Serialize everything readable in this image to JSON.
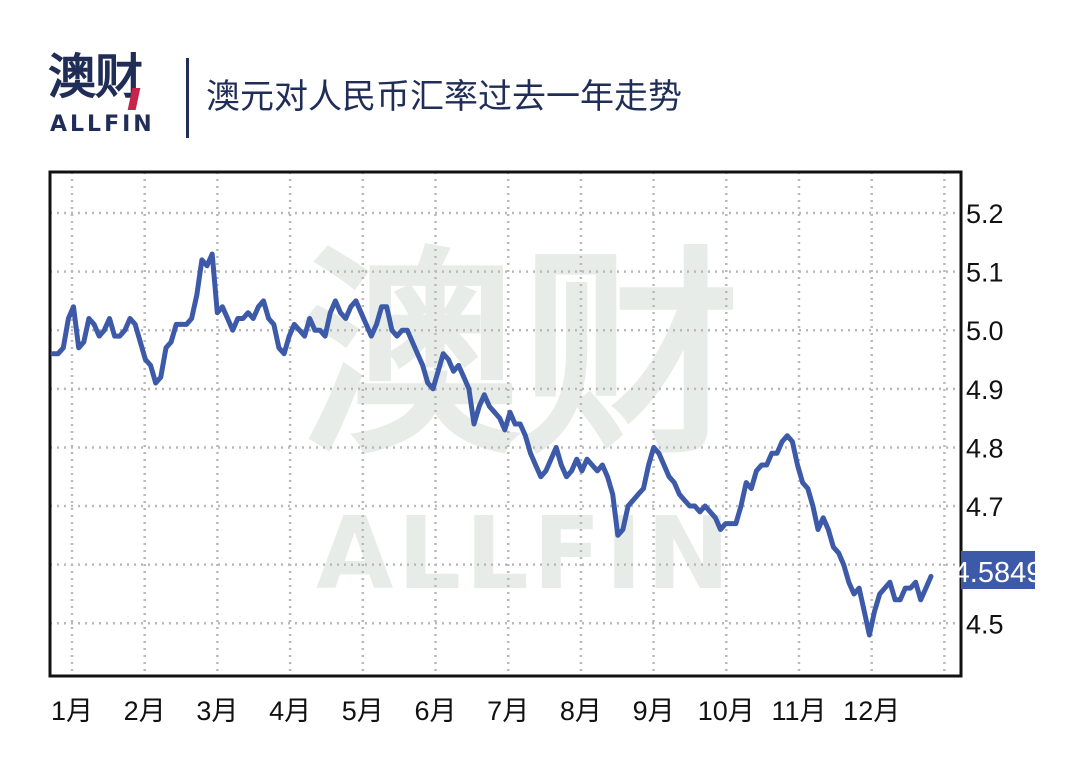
{
  "header": {
    "logo_cn": "澳财",
    "logo_en": "ALLFIN",
    "title": "澳元对人民币汇率过去一年走势"
  },
  "watermark": {
    "cn": "澳财",
    "en": "ALLFIN"
  },
  "colors": {
    "line": "#3d5aa8",
    "text": "#1f2d57",
    "grid": "#b9b9b9",
    "label_bg": "#3d5aa8"
  },
  "chart_data": {
    "type": "line",
    "title": "澳元对人民币汇率过去一年走势",
    "xlabel": "",
    "ylabel": "",
    "x_ticks": [
      "1月",
      "2月",
      "3月",
      "4月",
      "5月",
      "6月",
      "7月",
      "8月",
      "9月",
      "10月",
      "11月",
      "12月"
    ],
    "y_ticks": [
      "5.2",
      "5.1",
      "5.0",
      "4.9",
      "4.8",
      "4.7",
      "4.6",
      "4.5"
    ],
    "ylim": [
      4.41,
      5.27
    ],
    "grid": true,
    "last_value_label": "4.5849",
    "series": [
      {
        "values": [
          4.96,
          4.96,
          4.97,
          5.02,
          5.04,
          4.97,
          4.98,
          5.02,
          5.01,
          4.99,
          5.0,
          5.02,
          4.99,
          4.99,
          5.0,
          5.02,
          5.01,
          4.98,
          4.95,
          4.94,
          4.91,
          4.92,
          4.97,
          4.98,
          5.01,
          5.01,
          5.01,
          5.02,
          5.06,
          5.12,
          5.11,
          5.13,
          5.03,
          5.04,
          5.02,
          5.0,
          5.02,
          5.02,
          5.03,
          5.02,
          5.04,
          5.05,
          5.02,
          5.01,
          4.97,
          4.96,
          4.99,
          5.01,
          5.0,
          4.99,
          5.02,
          5.0,
          5.0,
          4.99,
          5.03,
          5.05,
          5.03,
          5.02,
          5.04,
          5.05,
          5.03,
          5.01,
          4.99,
          5.01,
          5.04,
          5.04,
          5.0,
          4.99,
          5.0,
          5.0,
          4.98,
          4.96,
          4.94,
          4.91,
          4.9,
          4.93,
          4.96,
          4.95,
          4.93,
          4.94,
          4.92,
          4.9,
          4.84,
          4.87,
          4.89,
          4.87,
          4.86,
          4.85,
          4.83,
          4.86,
          4.84,
          4.84,
          4.82,
          4.79,
          4.77,
          4.75,
          4.76,
          4.78,
          4.8,
          4.77,
          4.75,
          4.76,
          4.78,
          4.76,
          4.78,
          4.77,
          4.76,
          4.77,
          4.75,
          4.72,
          4.65,
          4.66,
          4.7,
          4.71,
          4.72,
          4.73,
          4.77,
          4.8,
          4.79,
          4.77,
          4.75,
          4.74,
          4.72,
          4.71,
          4.7,
          4.7,
          4.69,
          4.7,
          4.69,
          4.68,
          4.66,
          4.67,
          4.67,
          4.67,
          4.7,
          4.74,
          4.73,
          4.76,
          4.77,
          4.77,
          4.79,
          4.79,
          4.81,
          4.82,
          4.81,
          4.77,
          4.74,
          4.73,
          4.7,
          4.66,
          4.68,
          4.66,
          4.63,
          4.62,
          4.6,
          4.57,
          4.55,
          4.56,
          4.52,
          4.48,
          4.52,
          4.55,
          4.56,
          4.57,
          4.54,
          4.54,
          4.56,
          4.56,
          4.57,
          4.54,
          4.56,
          4.58
        ]
      }
    ]
  }
}
